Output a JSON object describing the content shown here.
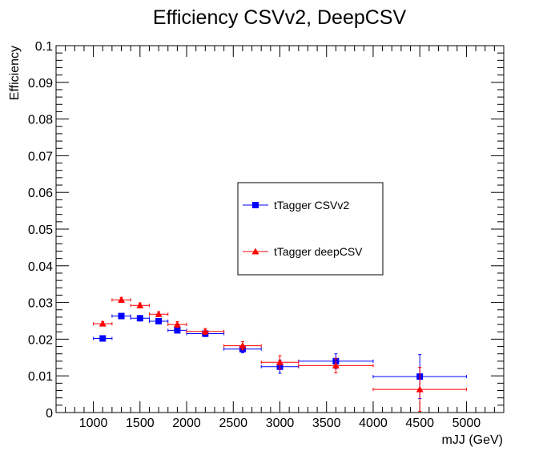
{
  "chart_data": {
    "type": "scatter",
    "title": "Efficiency CSVv2, DeepCSV",
    "xlabel": "mJJ (GeV)",
    "ylabel": "Efficiency",
    "xlim": [
      600,
      5400
    ],
    "ylim": [
      0,
      0.1
    ],
    "x_ticks": [
      1000,
      1500,
      2000,
      2500,
      3000,
      3500,
      4000,
      4500,
      5000
    ],
    "x_tick_labels": [
      "1000",
      "1500",
      "2000",
      "2500",
      "3000",
      "3500",
      "4000",
      "4500",
      "5000"
    ],
    "y_ticks": [
      0,
      0.01,
      0.02,
      0.03,
      0.04,
      0.05,
      0.06,
      0.07,
      0.08,
      0.09,
      0.1
    ],
    "y_tick_labels": [
      "0",
      "0.01",
      "0.02",
      "0.03",
      "0.04",
      "0.05",
      "0.06",
      "0.07",
      "0.08",
      "0.09",
      "0.1"
    ],
    "grid": false,
    "legend_position": "center-right",
    "series": [
      {
        "name": "tTagger CSVv2",
        "color": "#0000ff",
        "marker": "square",
        "points": [
          {
            "x": 1100,
            "y": 0.0202,
            "xlo": 1000,
            "xhi": 1200,
            "yerr": 0.0006
          },
          {
            "x": 1300,
            "y": 0.0263,
            "xlo": 1200,
            "xhi": 1400,
            "yerr": 0.0006
          },
          {
            "x": 1500,
            "y": 0.0257,
            "xlo": 1400,
            "xhi": 1600,
            "yerr": 0.0006
          },
          {
            "x": 1700,
            "y": 0.0249,
            "xlo": 1600,
            "xhi": 1800,
            "yerr": 0.0007
          },
          {
            "x": 1900,
            "y": 0.0224,
            "xlo": 1800,
            "xhi": 2000,
            "yerr": 0.0007
          },
          {
            "x": 2200,
            "y": 0.0215,
            "xlo": 2000,
            "xhi": 2400,
            "yerr": 0.0008
          },
          {
            "x": 2600,
            "y": 0.0173,
            "xlo": 2400,
            "xhi": 2800,
            "yerr": 0.001
          },
          {
            "x": 3000,
            "y": 0.0125,
            "xlo": 2800,
            "xhi": 3200,
            "yerr": 0.0018
          },
          {
            "x": 3600,
            "y": 0.014,
            "xlo": 3200,
            "xhi": 4000,
            "yerr": 0.002
          },
          {
            "x": 4500,
            "y": 0.0098,
            "xlo": 4000,
            "xhi": 5000,
            "yerr": 0.006
          }
        ]
      },
      {
        "name": "tTagger deepCSV",
        "color": "#ff0000",
        "marker": "triangle",
        "points": [
          {
            "x": 1100,
            "y": 0.0242,
            "xlo": 1000,
            "xhi": 1200,
            "yerr": 0.0006
          },
          {
            "x": 1300,
            "y": 0.0307,
            "xlo": 1200,
            "xhi": 1400,
            "yerr": 0.0007
          },
          {
            "x": 1500,
            "y": 0.0292,
            "xlo": 1400,
            "xhi": 1600,
            "yerr": 0.0007
          },
          {
            "x": 1700,
            "y": 0.0268,
            "xlo": 1600,
            "xhi": 1800,
            "yerr": 0.0007
          },
          {
            "x": 1900,
            "y": 0.024,
            "xlo": 1800,
            "xhi": 2000,
            "yerr": 0.0008
          },
          {
            "x": 2200,
            "y": 0.0221,
            "xlo": 2000,
            "xhi": 2400,
            "yerr": 0.0008
          },
          {
            "x": 2600,
            "y": 0.0182,
            "xlo": 2400,
            "xhi": 2800,
            "yerr": 0.0011
          },
          {
            "x": 3000,
            "y": 0.0137,
            "xlo": 2800,
            "xhi": 3200,
            "yerr": 0.0018
          },
          {
            "x": 3600,
            "y": 0.0128,
            "xlo": 3200,
            "xhi": 4000,
            "yerr": 0.002
          },
          {
            "x": 4500,
            "y": 0.0063,
            "xlo": 4000,
            "xhi": 5000,
            "yerr": 0.006
          }
        ]
      }
    ]
  }
}
